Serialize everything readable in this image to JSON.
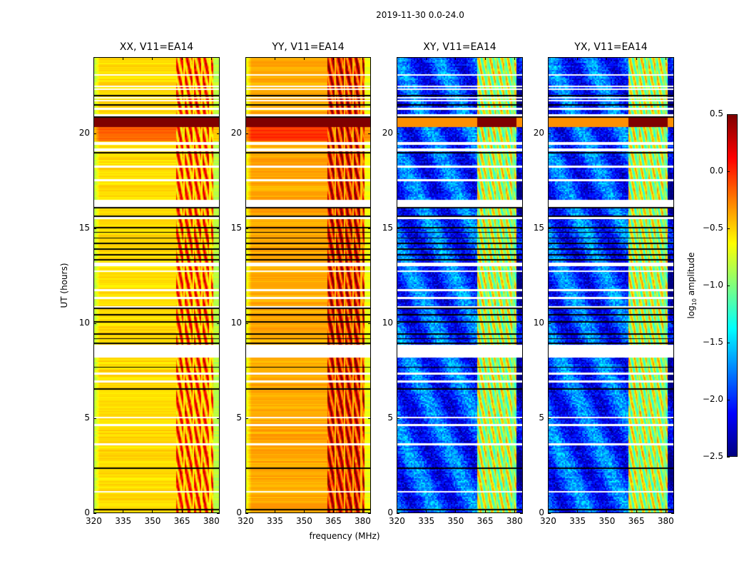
{
  "suptitle": "2019-11-30 0.0-24.0",
  "xlabel": "frequency (MHz)",
  "ylabel": "UT (hours)",
  "colorbar": {
    "label_prefix": "log",
    "label_sub": "10",
    "label_suffix": " amplitude",
    "range": [
      -2.5,
      0.5
    ],
    "ticks": [
      "0.5",
      "0.0",
      "−0.5",
      "−1.0",
      "−1.5",
      "−2.0",
      "−2.5"
    ],
    "tick_values": [
      0.5,
      0.0,
      -0.5,
      -1.0,
      -1.5,
      -2.0,
      -2.5
    ],
    "colormap": "jet"
  },
  "chart_data": [
    {
      "type": "heatmap",
      "title": "XX, V11=EA14",
      "xlim": [
        320,
        384.4
      ],
      "ylim": [
        0,
        24
      ],
      "xticks": [
        "320",
        "335",
        "350",
        "365",
        "380"
      ],
      "xtick_values": [
        320,
        335,
        350,
        365,
        380
      ],
      "yticks": [
        "0",
        "5",
        "10",
        "15",
        "20"
      ],
      "ytick_values": [
        0,
        5,
        10,
        15,
        20
      ],
      "base_level": -0.6,
      "rfi_level": -0.2,
      "rfi_band_mhz": [
        362,
        381
      ]
    },
    {
      "type": "heatmap",
      "title": "YY, V11=EA14",
      "xlim": [
        320,
        384.4
      ],
      "ylim": [
        0,
        24
      ],
      "xticks": [
        "320",
        "335",
        "350",
        "365",
        "380"
      ],
      "xtick_values": [
        320,
        335,
        350,
        365,
        380
      ],
      "yticks": [
        "0",
        "5",
        "10",
        "15",
        "20"
      ],
      "ytick_values": [
        0,
        5,
        10,
        15,
        20
      ],
      "base_level": -0.45,
      "rfi_level": 0.1,
      "rfi_band_mhz": [
        362,
        381
      ]
    },
    {
      "type": "heatmap",
      "title": "XY, V11=EA14",
      "xlim": [
        320,
        384.4
      ],
      "ylim": [
        0,
        24
      ],
      "xticks": [
        "320",
        "335",
        "350",
        "365",
        "380"
      ],
      "xtick_values": [
        320,
        335,
        350,
        365,
        380
      ],
      "yticks": [
        "0",
        "5",
        "10",
        "15",
        "20"
      ],
      "ytick_values": [
        0,
        5,
        10,
        15,
        20
      ],
      "base_level": -2.0,
      "rfi_level": -0.8,
      "rfi_band_mhz": [
        361,
        381
      ]
    },
    {
      "type": "heatmap",
      "title": "YX, V11=EA14",
      "xlim": [
        320,
        384.4
      ],
      "ylim": [
        0,
        24
      ],
      "xticks": [
        "320",
        "335",
        "350",
        "365",
        "380"
      ],
      "xtick_values": [
        320,
        335,
        350,
        365,
        380
      ],
      "yticks": [
        "0",
        "5",
        "10",
        "15",
        "20"
      ],
      "ytick_values": [
        0,
        5,
        10,
        15,
        20
      ],
      "base_level": -2.0,
      "rfi_level": -0.8,
      "rfi_band_mhz": [
        361,
        381
      ]
    }
  ],
  "flagged_ut_bands": [
    [
      23.05,
      23.12
    ],
    [
      22.45,
      22.5
    ],
    [
      22.3,
      22.36
    ],
    [
      21.85,
      21.9
    ],
    [
      21.7,
      21.78
    ],
    [
      21.25,
      21.35
    ],
    [
      20.9,
      21.0
    ],
    [
      19.4,
      19.55
    ],
    [
      19.05,
      19.2
    ],
    [
      18.2,
      18.3
    ],
    [
      17.5,
      17.6
    ],
    [
      16.1,
      16.5
    ],
    [
      15.5,
      15.6
    ],
    [
      13.0,
      13.2
    ],
    [
      12.7,
      12.8
    ],
    [
      11.7,
      11.8
    ],
    [
      11.3,
      11.4
    ],
    [
      10.8,
      10.9
    ],
    [
      8.2,
      8.9
    ],
    [
      7.3,
      7.4
    ],
    [
      6.9,
      7.0
    ],
    [
      5.0,
      5.1
    ],
    [
      4.6,
      4.7
    ],
    [
      3.6,
      3.7
    ],
    [
      1.1,
      1.2
    ]
  ],
  "saturated_ut_band": [
    20.35,
    20.85
  ],
  "black_ut_lines": [
    22.0,
    21.5,
    20.85,
    19.0,
    16.1,
    15.65,
    15.05,
    14.8,
    14.5,
    14.2,
    13.9,
    13.6,
    13.35,
    10.8,
    10.45,
    10.1,
    9.45,
    9.2,
    8.95,
    7.7,
    6.55,
    2.4,
    0.22
  ]
}
